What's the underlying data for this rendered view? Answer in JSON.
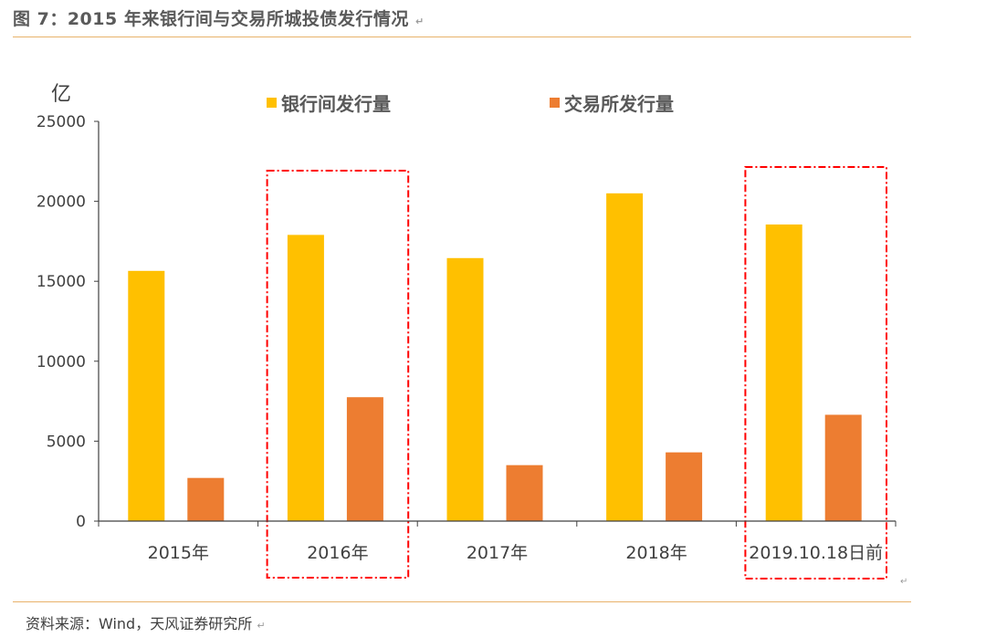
{
  "figure": {
    "title": "图 7：2015 年来银行间与交易所城投债发行情况",
    "source": "资料来源：Wind，天风证券研究所",
    "mark": "↵"
  },
  "colors": {
    "interbank": "#FFC000",
    "exchange": "#ED7D31",
    "highlight_box": "#FF0000",
    "title_rule": "#E8B26A"
  },
  "chart_data": {
    "type": "bar",
    "ylabel": "亿",
    "ylim": [
      0,
      25000
    ],
    "yticks": [
      0,
      5000,
      10000,
      15000,
      20000,
      25000
    ],
    "categories": [
      "2015年",
      "2016年",
      "2017年",
      "2018年",
      "2019.10.18日前"
    ],
    "series": [
      {
        "name": "银行间发行量",
        "values": [
          15650,
          17900,
          16450,
          20500,
          18550
        ]
      },
      {
        "name": "交易所发行量",
        "values": [
          2700,
          7750,
          3500,
          4300,
          6650
        ]
      }
    ],
    "legend": "top",
    "grid": false,
    "highlighted_categories": [
      "2016年",
      "2019.10.18日前"
    ]
  }
}
